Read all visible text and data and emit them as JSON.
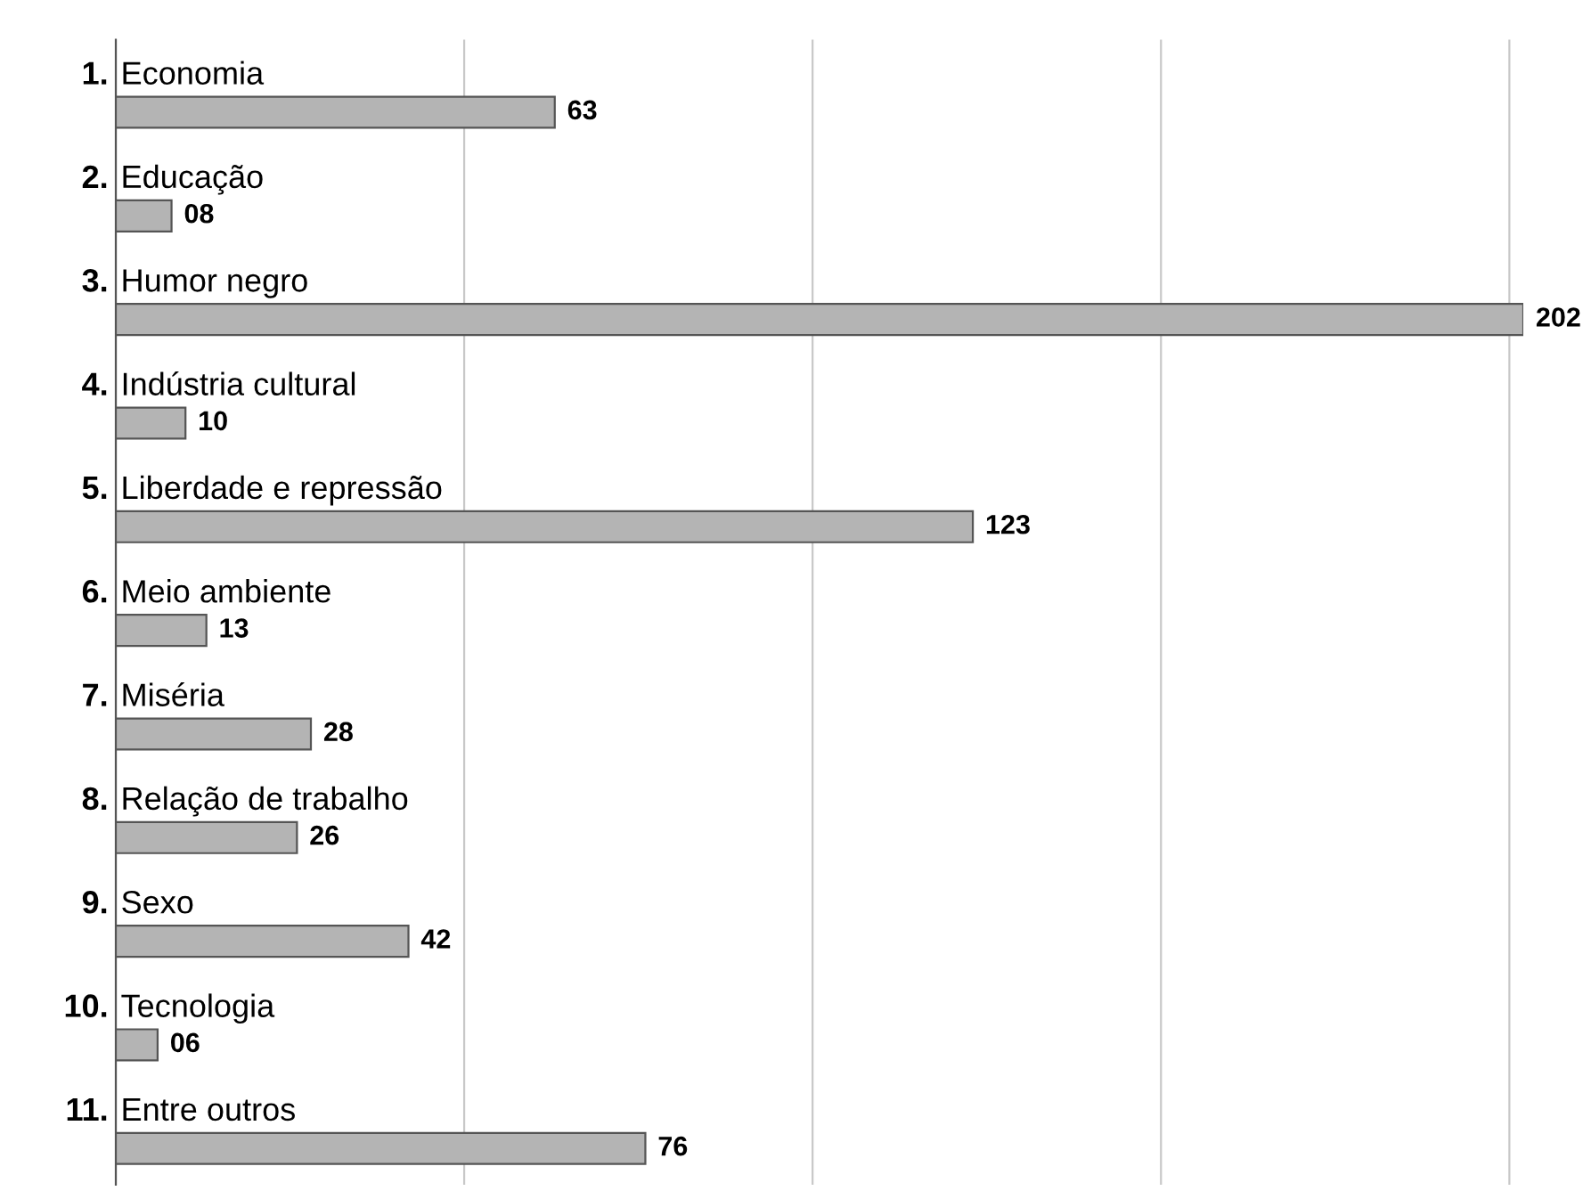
{
  "chart_data": {
    "type": "bar",
    "orientation": "horizontal",
    "categories": [
      "1. Economia",
      "2. Educação",
      "3. Humor negro",
      "4. Indústria cultural",
      "5. Liberdade e repressão",
      "6. Meio ambiente",
      "7. Miséria",
      "8. Relação de trabalho",
      "9. Sexo",
      "10. Tecnologia",
      "11. Entre outros"
    ],
    "values": [
      63,
      8,
      202,
      10,
      123,
      13,
      28,
      26,
      42,
      6,
      76
    ],
    "value_labels": [
      "63",
      "08",
      "202",
      "10",
      "123",
      "13",
      "28",
      "26",
      "42",
      "06",
      "76"
    ],
    "color": "#b4b4b4",
    "xticks": [
      {
        "value": 0,
        "label": null
      },
      {
        "value": 50,
        "label": null
      },
      {
        "value": 100,
        "label": null
      },
      {
        "value": 150,
        "label": null
      },
      {
        "value": 200,
        "label": null
      }
    ],
    "grid": "x"
  }
}
